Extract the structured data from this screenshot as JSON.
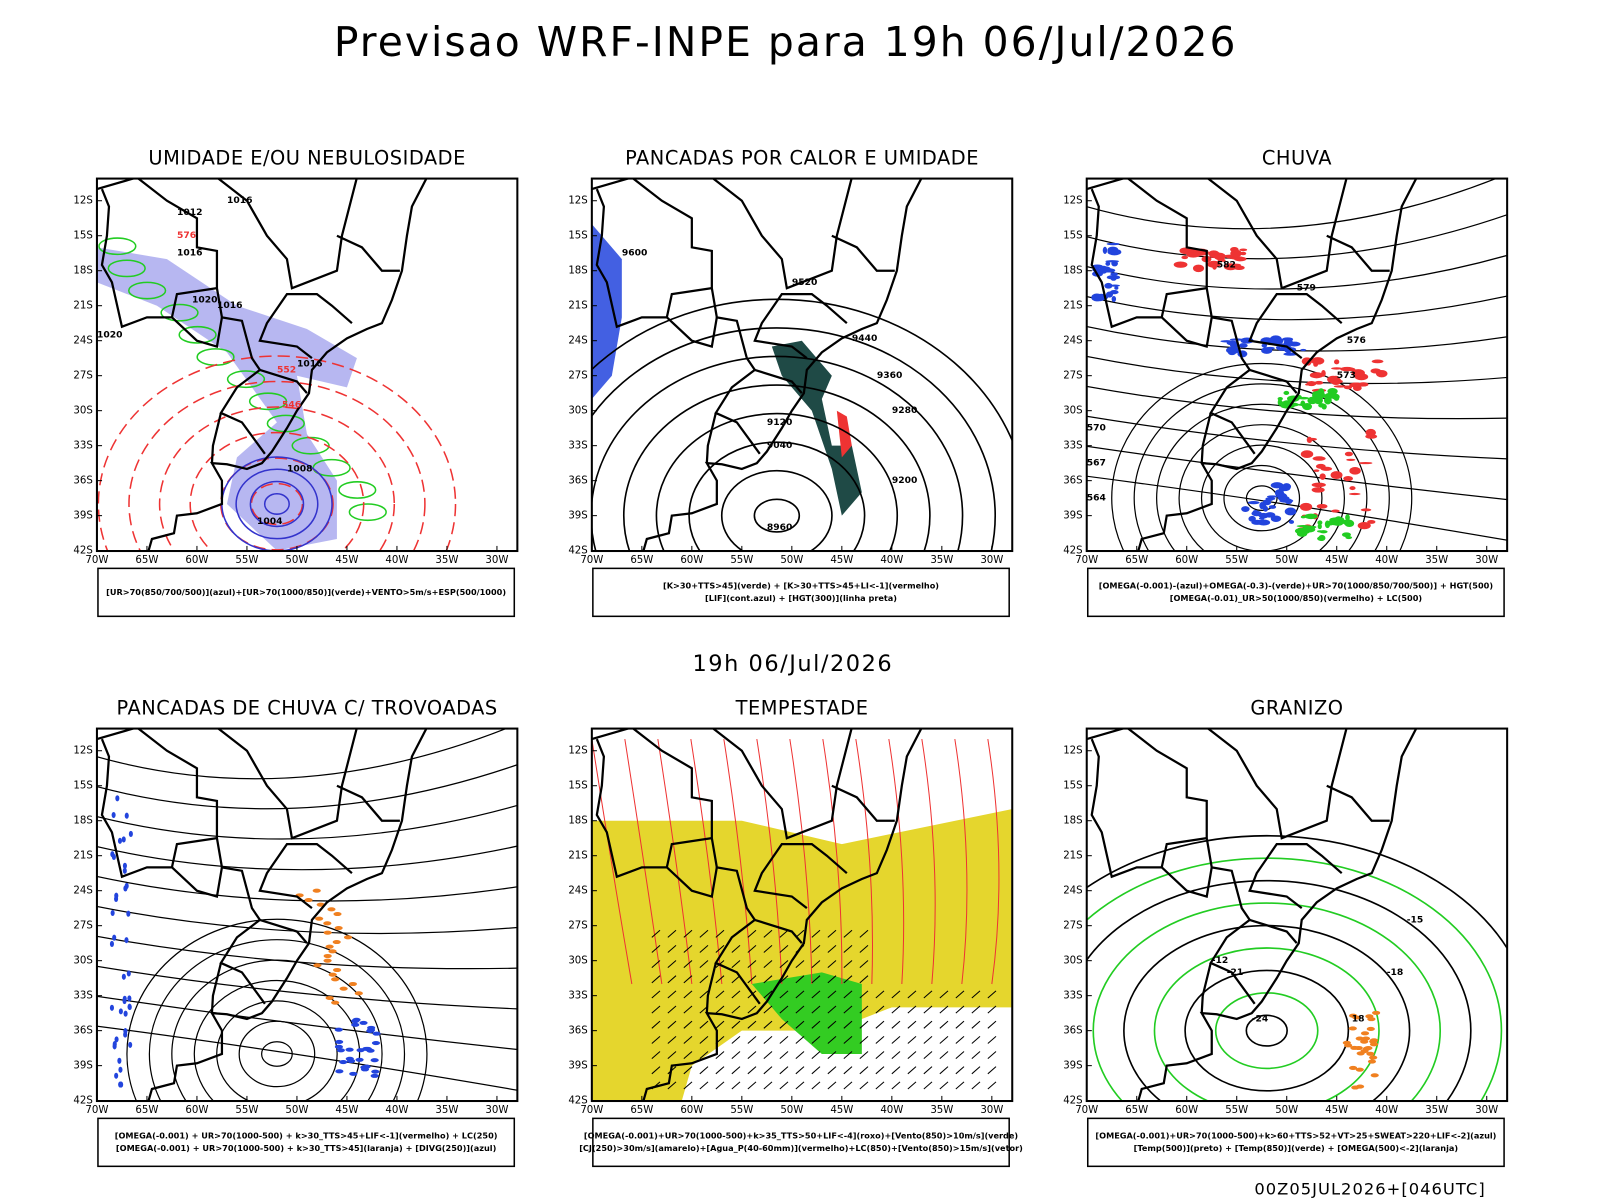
{
  "header": {
    "title": "Previsao WRF-INPE  para 19h 06/Jul/2026",
    "subtitle": "19h 06/Jul/2026",
    "footer": "00Z05JUL2026+[046UTC]"
  },
  "axes": {
    "lat": [
      "12S",
      "15S",
      "18S",
      "21S",
      "24S",
      "27S",
      "30S",
      "33S",
      "36S",
      "39S",
      "42S"
    ],
    "lon": [
      "70W",
      "65W",
      "60W",
      "55W",
      "50W",
      "45W",
      "40W",
      "35W",
      "30W"
    ]
  },
  "panels": [
    {
      "title": "UMIDADE E/OU NEBULOSIDADE",
      "legend": [
        "[UR>70(850/700/500)](azul)+[UR>70(1000/850)](verde)+VENTO>5m/s+ESP(500/1000)"
      ],
      "labels": [
        "1016",
        "1012",
        "1016",
        "1020",
        "1016",
        "1020",
        "1016",
        "1008",
        "1004",
        "576",
        "552",
        "546"
      ]
    },
    {
      "title": "PANCADAS POR CALOR E UMIDADE",
      "legend": [
        "[K>30+TTS>45](verde) + [K>30+TTS>45+LI<-1](vermelho)",
        "[LIF](cont.azul) + [HGT(300)](linha preta)"
      ],
      "labels": [
        "9600",
        "9520",
        "9440",
        "9360",
        "9280",
        "9200",
        "9120",
        "9040",
        "8960"
      ]
    },
    {
      "title": "CHUVA",
      "legend": [
        "[OMEGA(-0.001)-(azul)+OMEGA(-0.3)-(verde)+UR>70(1000/850/700/500)] + HGT(500)",
        "[OMEGA(-0.01)_UR>50(1000/850)(vermelho) + LC(500)"
      ],
      "labels": [
        "582",
        "579",
        "576",
        "573",
        "570",
        "567",
        "564"
      ]
    },
    {
      "title": "PANCADAS DE CHUVA C/ TROVOADAS",
      "legend": [
        "[OMEGA(-0.001) + UR>70(1000-500) + k>30_TTS>45+LIF<-1](vermelho) + LC(250)",
        "[OMEGA(-0.001) + UR>70(1000-500) + k>30_TTS>45](laranja) + [DIVG(250)](azul)"
      ],
      "labels": []
    },
    {
      "title": "TEMPESTADE",
      "legend": [
        "[OMEGA(-0.001)+UR>70(1000-500)+k>35_TTS>50+LIF<-4](roxo)+[Vento(850)>10m/s](verde)",
        "[CJ(250)>30m/s](amarelo)+[Agua_P(40-60mm)](vermelho)+LC(850)+[Vento(850)>15m/s](vetor)"
      ],
      "labels": []
    },
    {
      "title": "GRANIZO",
      "legend": [
        "[OMEGA(-0.001)+UR>70(1000-500)+k>60+TTS>52+VT>25+SWEAT>220+LIF<-2](azul)",
        "[Temp(500)](preto) + [Temp(850)](verde) + [OMEGA(500)<-2](laranja)"
      ],
      "labels": [
        "-12",
        "-15",
        "-18",
        "-21",
        "-24",
        "18"
      ]
    }
  ]
}
